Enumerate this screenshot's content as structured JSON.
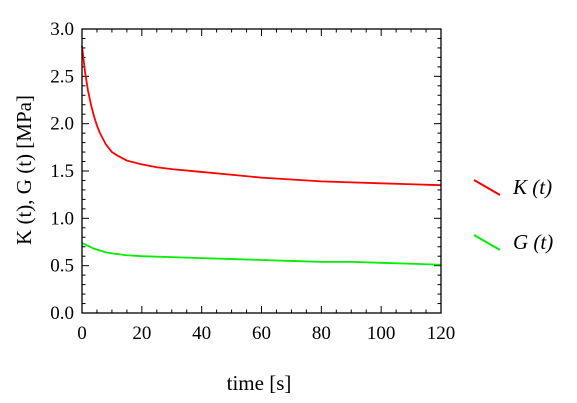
{
  "chart_data": {
    "type": "line",
    "xlabel": "time [s]",
    "ylabel": "K (t), G (t) [MPa]",
    "xlim": [
      0,
      120
    ],
    "ylim": [
      0.0,
      3.0
    ],
    "x_ticks": [
      "0",
      "20",
      "40",
      "60",
      "80",
      "100",
      "120"
    ],
    "y_ticks": [
      "0.0",
      "0.5",
      "1.0",
      "1.5",
      "2.0",
      "2.5",
      "3.0"
    ],
    "grid": false,
    "legend_position": "right",
    "series": [
      {
        "name": "K (t)",
        "color": "#ff0000",
        "x": [
          0,
          1,
          2,
          3,
          4,
          5,
          6,
          8,
          10,
          12,
          15,
          20,
          25,
          30,
          40,
          50,
          60,
          70,
          80,
          90,
          100,
          110,
          120
        ],
        "y": [
          2.82,
          2.55,
          2.35,
          2.2,
          2.08,
          1.98,
          1.9,
          1.78,
          1.7,
          1.66,
          1.61,
          1.57,
          1.54,
          1.52,
          1.49,
          1.46,
          1.43,
          1.41,
          1.39,
          1.38,
          1.37,
          1.36,
          1.35
        ]
      },
      {
        "name": "G (t)",
        "color": "#00ee00",
        "x": [
          0,
          2,
          4,
          6,
          8,
          10,
          15,
          20,
          30,
          40,
          50,
          60,
          70,
          80,
          90,
          100,
          110,
          120
        ],
        "y": [
          0.74,
          0.71,
          0.68,
          0.66,
          0.64,
          0.63,
          0.61,
          0.6,
          0.59,
          0.58,
          0.57,
          0.56,
          0.55,
          0.54,
          0.54,
          0.53,
          0.52,
          0.51
        ]
      }
    ]
  }
}
